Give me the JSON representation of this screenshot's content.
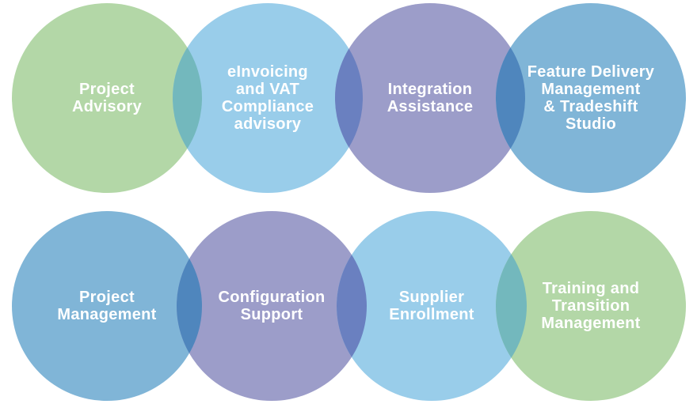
{
  "colors": {
    "green": "#b3d7a7",
    "light_blue": "#99cdea",
    "purple": "#9c9dc9",
    "steel_blue": "#80b5d7",
    "overlap_green_blue": "#73b8bd",
    "overlap_blue_purple": "#6a80c0",
    "overlap_purple_steel": "#4f86bd",
    "overlap_steel_purple": "#4f86bd",
    "overlap_purple_light": "#6a80c0",
    "overlap_light_green": "#73b8bd"
  },
  "rows": [
    {
      "items": [
        {
          "id": "project-advisory",
          "color": "green",
          "lines": [
            "Project",
            "Advisory"
          ]
        },
        {
          "id": "einvoicing-vat",
          "color": "light_blue",
          "lines": [
            "eInvoicing",
            "and VAT",
            "Compliance",
            "advisory"
          ]
        },
        {
          "id": "integration-assistance",
          "color": "purple",
          "lines": [
            "Integration",
            "Assistance"
          ]
        },
        {
          "id": "feature-delivery",
          "color": "steel_blue",
          "lines": [
            "Feature Delivery",
            "Management",
            "& Tradeshift",
            "Studio"
          ]
        }
      ],
      "overlaps": [
        "overlap_green_blue",
        "overlap_blue_purple",
        "overlap_purple_steel"
      ]
    },
    {
      "items": [
        {
          "id": "project-management",
          "color": "steel_blue",
          "lines": [
            "Project",
            "Management"
          ]
        },
        {
          "id": "configuration-support",
          "color": "purple",
          "lines": [
            "Configuration",
            "Support"
          ]
        },
        {
          "id": "supplier-enrollment",
          "color": "light_blue",
          "lines": [
            "Supplier",
            "Enrollment"
          ]
        },
        {
          "id": "training-transition",
          "color": "green",
          "lines": [
            "Training and",
            "Transition",
            "Management"
          ]
        }
      ],
      "overlaps": [
        "overlap_steel_purple",
        "overlap_purple_light",
        "overlap_light_green"
      ]
    }
  ]
}
